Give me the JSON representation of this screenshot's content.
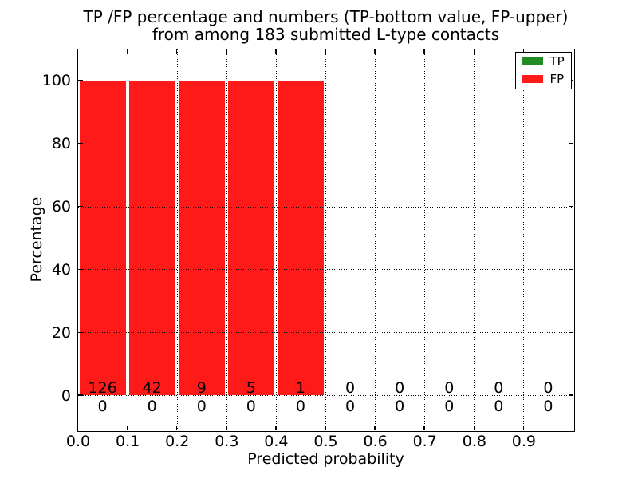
{
  "chart_data": {
    "type": "bar",
    "title_lines": [
      "TP /FP percentage and numbers (TP-bottom value, FP-upper)",
      "from among 183 submitted L-type contacts"
    ],
    "title": "TP /FP percentage and numbers (TP-bottom value, FP-upper)\nfrom among 183 submitted L-type contacts",
    "xlabel": "Predicted probability",
    "ylabel": "Percentage",
    "total_submitted": 183,
    "contact_type": "L-type",
    "x_tick_labels": [
      "0.0",
      "0.1",
      "0.2",
      "0.3",
      "0.4",
      "0.5",
      "0.6",
      "0.7",
      "0.8",
      "0.9"
    ],
    "y_ticks": [
      0,
      20,
      40,
      60,
      80,
      100
    ],
    "xlim": [
      0.0,
      1.0
    ],
    "ylim": [
      -11,
      110
    ],
    "bin_width": 0.1,
    "grid": true,
    "grid_style": "dotted",
    "legend_position": "upper right",
    "series": [
      {
        "name": "TP",
        "color": "#228B22",
        "count_row": "bottom",
        "percent": [
          0,
          0,
          0,
          0,
          0,
          0,
          0,
          0,
          0,
          0
        ],
        "counts": [
          0,
          0,
          0,
          0,
          0,
          0,
          0,
          0,
          0,
          0
        ]
      },
      {
        "name": "FP",
        "color": "#FF1A1A",
        "count_row": "upper",
        "percent": [
          100,
          100,
          100,
          100,
          100,
          0,
          0,
          0,
          0,
          0
        ],
        "counts": [
          126,
          42,
          9,
          5,
          1,
          0,
          0,
          0,
          0,
          0
        ]
      }
    ]
  }
}
